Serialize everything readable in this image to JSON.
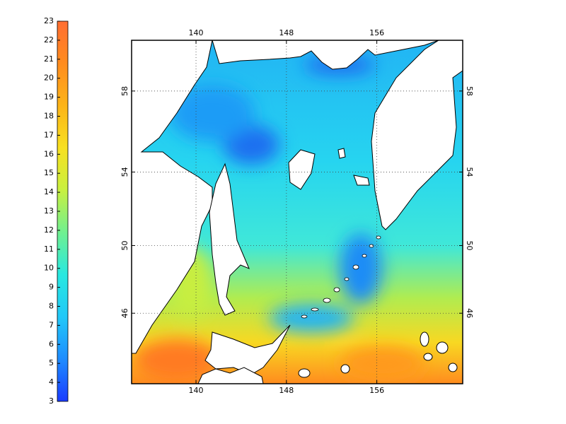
{
  "colorbar": {
    "range": [
      3,
      23
    ],
    "ticks": [
      3,
      4,
      5,
      6,
      7,
      8,
      9,
      10,
      11,
      12,
      13,
      14,
      15,
      16,
      17,
      18,
      19,
      20,
      21,
      22,
      23
    ],
    "colormap": [
      "#1a3cff",
      "#1e8cff",
      "#22c8f8",
      "#28e8e0",
      "#70f090",
      "#c8f040",
      "#f8e020",
      "#fcb418",
      "#ff8c1e",
      "#ff6e32"
    ]
  },
  "map": {
    "projection": "mercator",
    "xlim": [
      134.3,
      163.6
    ],
    "ylim": [
      41.5,
      60.3
    ],
    "xticks": [
      140,
      148,
      156
    ],
    "yticks": [
      46,
      50,
      54,
      58
    ],
    "grid": true
  }
}
